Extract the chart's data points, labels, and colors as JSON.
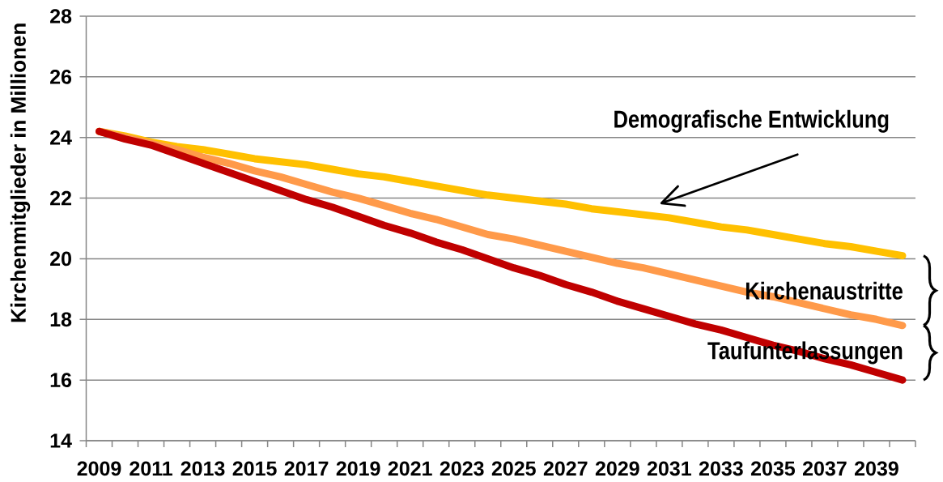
{
  "chart_data": {
    "type": "line",
    "ylabel": "Kirchenmitglieder in Millionen",
    "categories": [
      "2009",
      null,
      "2011",
      null,
      "2013",
      null,
      "2015",
      null,
      "2017",
      null,
      "2019",
      null,
      "2021",
      null,
      "2023",
      null,
      "2025",
      null,
      "2027",
      null,
      "2029",
      null,
      "2031",
      null,
      "2033",
      null,
      "2035",
      null,
      "2037",
      null,
      "2039",
      null
    ],
    "series": [
      {
        "color": "#ffc000",
        "values": [
          24.2,
          24.05,
          23.85,
          23.7,
          23.6,
          23.45,
          23.3,
          23.2,
          23.1,
          22.95,
          22.8,
          22.7,
          22.55,
          22.4,
          22.25,
          22.1,
          22.0,
          21.9,
          21.8,
          21.65,
          21.55,
          21.45,
          21.35,
          21.2,
          21.05,
          20.95,
          20.8,
          20.65,
          20.5,
          20.4,
          20.25,
          20.1
        ]
      },
      {
        "color": "#ff9a4a",
        "values": [
          24.2,
          24.0,
          23.8,
          23.6,
          23.35,
          23.15,
          22.9,
          22.7,
          22.45,
          22.2,
          22.0,
          21.75,
          21.5,
          21.3,
          21.05,
          20.8,
          20.65,
          20.45,
          20.25,
          20.05,
          19.85,
          19.7,
          19.5,
          19.3,
          19.1,
          18.9,
          18.75,
          18.55,
          18.35,
          18.15,
          18.0,
          17.8
        ]
      },
      {
        "color": "#c00000",
        "values": [
          24.2,
          23.95,
          23.75,
          23.45,
          23.15,
          22.85,
          22.55,
          22.25,
          21.95,
          21.7,
          21.4,
          21.1,
          20.85,
          20.55,
          20.3,
          20.0,
          19.7,
          19.45,
          19.15,
          18.9,
          18.6,
          18.35,
          18.1,
          17.85,
          17.65,
          17.4,
          17.15,
          16.95,
          16.7,
          16.5,
          16.25,
          16.0
        ]
      }
    ],
    "ylim": [
      14,
      28
    ],
    "yticks": [
      14,
      16,
      18,
      20,
      22,
      24,
      26,
      28
    ],
    "grid": "y",
    "marker": "none",
    "line_style": "solid",
    "annotations": [
      "Demografische Entwicklung",
      "Kirchenaustritte",
      "Taufunterlassungen"
    ]
  }
}
